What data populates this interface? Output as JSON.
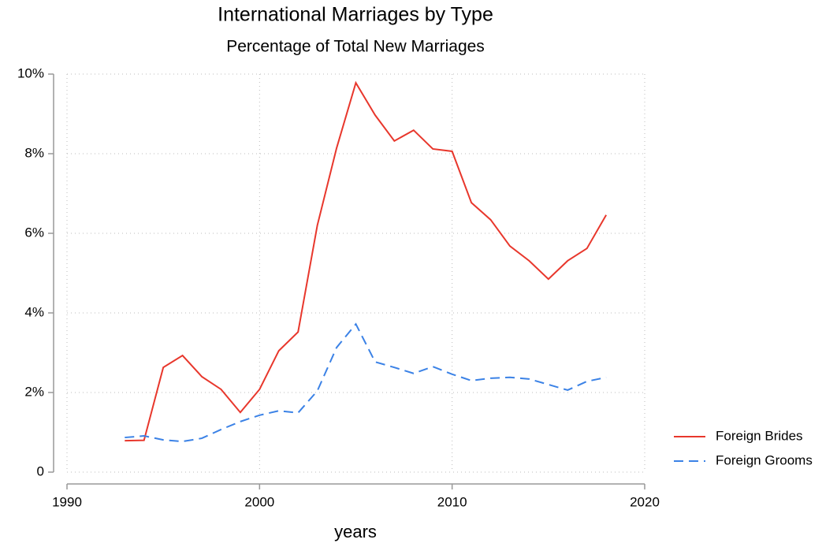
{
  "chart_data": {
    "type": "line",
    "title": "International Marriages by Type",
    "subtitle": "Percentage of Total New Marriages",
    "x_label": "years",
    "x": [
      1993,
      1994,
      1995,
      1996,
      1997,
      1998,
      1999,
      2000,
      2001,
      2002,
      2003,
      2004,
      2005,
      2006,
      2007,
      2008,
      2009,
      2010,
      2011,
      2012,
      2013,
      2014,
      2015,
      2016,
      2017,
      2018
    ],
    "series": [
      {
        "name": "Foreign Brides",
        "color": "#e8372c",
        "dash": "solid",
        "values": [
          0.79,
          0.8,
          2.63,
          2.93,
          2.4,
          2.08,
          1.5,
          2.08,
          3.05,
          3.52,
          6.2,
          8.14,
          9.78,
          8.97,
          8.32,
          8.59,
          8.12,
          8.06,
          6.77,
          6.34,
          5.68,
          5.31,
          4.85,
          5.31,
          5.62,
          6.46
        ]
      },
      {
        "name": "Foreign Grooms",
        "color": "#3b82e6",
        "dash": "dashed",
        "values": [
          0.87,
          0.91,
          0.81,
          0.77,
          0.85,
          1.07,
          1.27,
          1.43,
          1.54,
          1.49,
          2.04,
          3.13,
          3.72,
          2.77,
          2.63,
          2.48,
          2.65,
          2.46,
          2.3,
          2.36,
          2.38,
          2.34,
          2.2,
          2.06,
          2.28,
          2.38
        ]
      }
    ],
    "xlim": [
      1990,
      2020
    ],
    "xticks": [
      1990,
      2000,
      2010,
      2020
    ],
    "ylim": [
      0,
      10
    ],
    "yticks": [
      0,
      {
        "value": 2,
        "label": "2%"
      },
      {
        "value": 4,
        "label": "4%"
      },
      {
        "value": 6,
        "label": "6%"
      },
      {
        "value": 8,
        "label": "8%"
      },
      {
        "value": 10,
        "label": "10%"
      }
    ],
    "grid": true,
    "legend": "right"
  }
}
